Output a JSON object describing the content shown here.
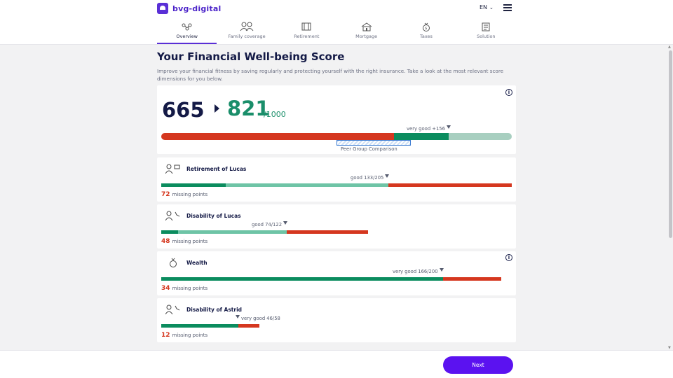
{
  "header": {
    "brand": "bvg-digital",
    "language": "EN",
    "tabs": [
      {
        "label": "Overview"
      },
      {
        "label": "Family coverage"
      },
      {
        "label": "Retirement"
      },
      {
        "label": "Mortgage"
      },
      {
        "label": "Taxes"
      },
      {
        "label": "Solution"
      }
    ]
  },
  "main": {
    "title": "Your Financial Well-being Score",
    "intro": "Improve your financial fitness by saving regularly and protecting yourself with the right insurance. Take a look at the most relevant score dimensions for you below.",
    "score": {
      "current": "665",
      "potential": "821",
      "max": "/1000",
      "marker_label": "very good +156",
      "peer_label": "Peer Group Comparison"
    },
    "dimensions": [
      {
        "title": "Retirement of Lucas",
        "marker_label": "good 133/205",
        "missing_num": "72",
        "missing_label": "missing points"
      },
      {
        "title": "Disability of Lucas",
        "marker_label": "good 74/122",
        "missing_num": "48",
        "missing_label": "missing points"
      },
      {
        "title": "Wealth",
        "marker_label": "very good 166/200",
        "missing_num": "34",
        "missing_label": "missing points"
      },
      {
        "title": "Disability of Astrid",
        "marker_label": "very good 46/58",
        "missing_num": "12",
        "missing_label": "missing points"
      }
    ]
  },
  "footer": {
    "next_label": "Next"
  },
  "colors": {
    "accent": "#5b12f0",
    "good": "#0b8c5e",
    "bad": "#d5371f",
    "navy": "#141a46"
  },
  "icons": [
    "logo-icon",
    "chevron-down-icon",
    "hamburger-menu-icon",
    "info-icon",
    "overview-icon",
    "family-icon",
    "retirement-icon",
    "mortgage-icon",
    "taxes-icon",
    "solution-icon",
    "person-icon",
    "wealth-icon"
  ]
}
